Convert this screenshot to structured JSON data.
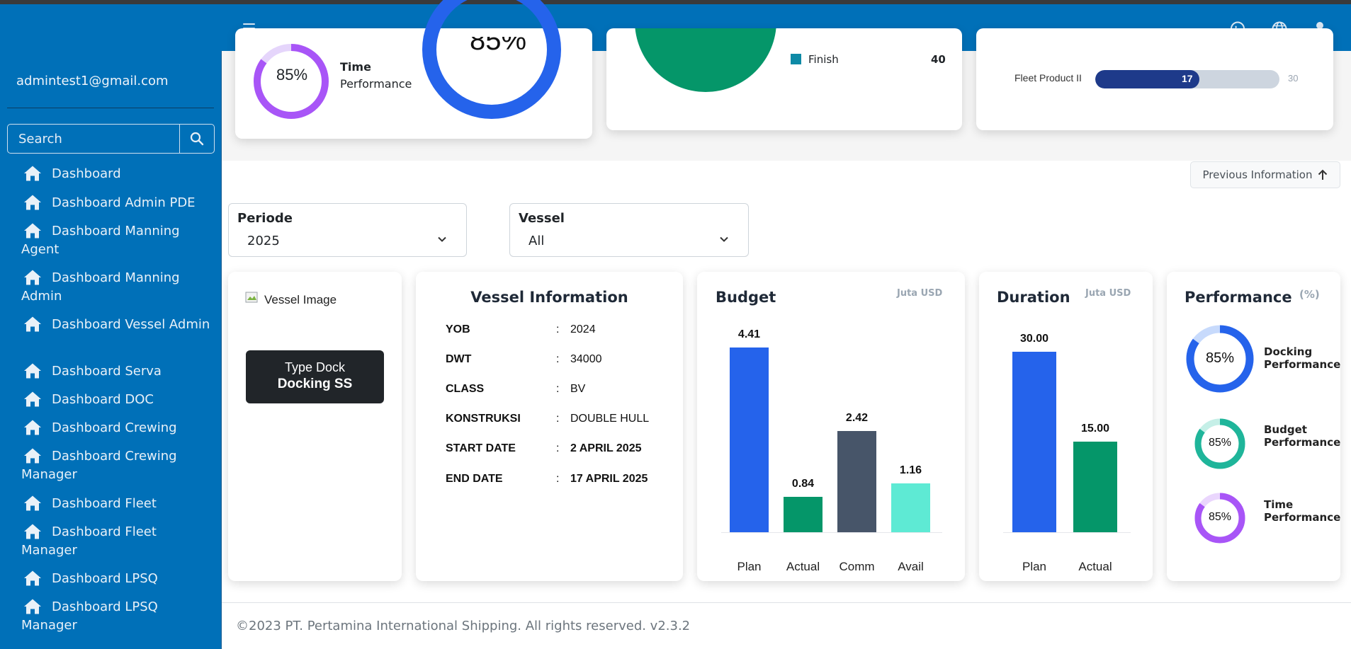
{
  "header": {
    "icons": [
      "menu-icon",
      "whatsapp-icon",
      "globe-icon",
      "user-icon"
    ]
  },
  "sidebar": {
    "user_email": "admintest1@gmail.com",
    "search_placeholder": "Search",
    "items": [
      {
        "label": "Dashboard"
      },
      {
        "label": "Dashboard Admin PDE"
      },
      {
        "label": "Dashboard Manning Agent"
      },
      {
        "label": "Dashboard Manning Admin"
      },
      {
        "label": "Dashboard Vessel Admin"
      },
      {
        "label": "Dashboard Serva"
      },
      {
        "label": "Dashboard DOC"
      },
      {
        "label": "Dashboard Crewing"
      },
      {
        "label": "Dashboard Crewing Manager"
      },
      {
        "label": "Dashboard Fleet"
      },
      {
        "label": "Dashboard Fleet Manager"
      },
      {
        "label": "Dashboard LPSQ"
      },
      {
        "label": "Dashboard LPSQ Manager"
      }
    ]
  },
  "top_section": {
    "time_perf_value": "85%",
    "time_perf_label1": "Time",
    "time_perf_label2": "Performance",
    "big_ring_value": "85%",
    "finish_label": "Finish",
    "finish_value": "40",
    "fleet_label": "Fleet Product II",
    "fleet_bar_value": "17",
    "fleet_bar_max": "30",
    "fleet_bar_fraction": 0.5667
  },
  "previous_button": "Previous Information",
  "filters": {
    "periode_label": "Periode",
    "periode_value": "2025",
    "vessel_label": "Vessel",
    "vessel_value": "All"
  },
  "vessel_card": {
    "image_alt": "Vessel Image",
    "type_dock_label": "Type Dock",
    "type_dock_value": "Docking SS"
  },
  "vessel_info": {
    "title": "Vessel Information",
    "rows": [
      {
        "key": "YOB",
        "sep": ":",
        "value": "2024"
      },
      {
        "key": "DWT",
        "sep": ":",
        "value": "34000"
      },
      {
        "key": "CLASS",
        "sep": ":",
        "value": "BV"
      },
      {
        "key": "KONSTRUKSI",
        "sep": ":",
        "value": "DOUBLE HULL"
      },
      {
        "key": "START DATE",
        "sep": ":",
        "value": "2 APRIL 2025"
      },
      {
        "key": "END DATE",
        "sep": ":",
        "value": "17 APRIL 2025"
      }
    ]
  },
  "budget": {
    "title": "Budget",
    "unit": "Juta USD"
  },
  "duration": {
    "title": "Duration",
    "unit": "Juta USD"
  },
  "performance": {
    "title": "Performance",
    "unit": "(%)",
    "items": [
      {
        "value": "85%",
        "line1": "Docking",
        "line2": "Performance",
        "color": "#2563eb",
        "fraction": 0.85
      },
      {
        "value": "85%",
        "line1": "Budget",
        "line2": "Performance",
        "color": "#1fb59a",
        "fraction": 0.85
      },
      {
        "value": "85%",
        "line1": "Time",
        "line2": "Performance",
        "color": "#a855f7",
        "fraction": 0.85
      }
    ]
  },
  "chart_data": [
    {
      "type": "bar",
      "title": "Budget",
      "unit": "Juta USD",
      "categories": [
        "Plan",
        "Actual",
        "Comm",
        "Avail"
      ],
      "values": [
        4.41,
        0.84,
        2.42,
        1.16
      ],
      "value_labels": [
        "4.41",
        "0.84",
        "2.42",
        "1.16"
      ],
      "colors": [
        "#2563eb",
        "#059669",
        "#475569",
        "#5eead4"
      ],
      "ylim": [
        0,
        4.41
      ]
    },
    {
      "type": "bar",
      "title": "Duration",
      "unit": "Juta USD",
      "categories": [
        "Plan",
        "Actual"
      ],
      "values": [
        30.0,
        15.0
      ],
      "value_labels": [
        "30.00",
        "15.00"
      ],
      "colors": [
        "#2563eb",
        "#059669"
      ],
      "ylim": [
        0,
        30
      ]
    }
  ],
  "footer": {
    "text": "©2023 PT. Pertamina International Shipping. All rights reserved. v2.3.2"
  }
}
